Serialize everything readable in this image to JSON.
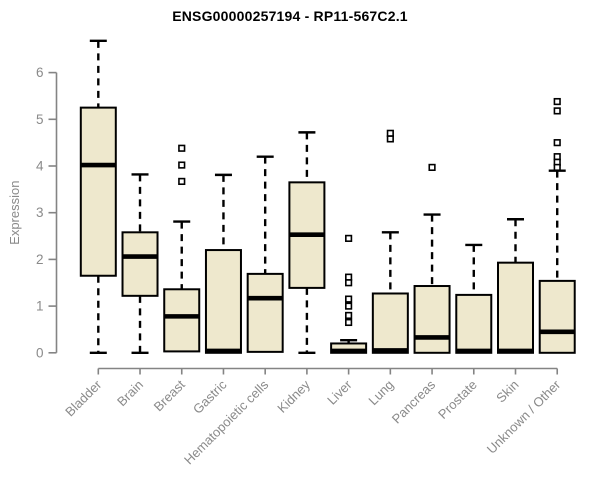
{
  "title": "ENSG00000257194 - RP11-567C2.1",
  "chart_data": {
    "type": "boxplot",
    "title": "ENSG00000257194 - RP11-567C2.1",
    "xlabel": "",
    "ylabel": "Expression",
    "ylim": [
      0,
      6.7
    ],
    "yticks": [
      0,
      1,
      2,
      3,
      4,
      5,
      6
    ],
    "grid": false,
    "legend": "none",
    "categories": [
      "Bladder",
      "Brain",
      "Breast",
      "Gastric",
      "Hematopoietic cells",
      "Kidney",
      "Liver",
      "Lung",
      "Pancreas",
      "Prostate",
      "Skin",
      "Unknown / Other"
    ],
    "series": [
      {
        "category": "Bladder",
        "whisker_low": 0,
        "q1": 1.65,
        "median": 4.02,
        "q3": 5.25,
        "whisker_high": 6.68,
        "outliers": []
      },
      {
        "category": "Brain",
        "whisker_low": 0,
        "q1": 1.22,
        "median": 2.06,
        "q3": 2.58,
        "whisker_high": 3.82,
        "outliers": []
      },
      {
        "category": "Breast",
        "whisker_low": 0.03,
        "q1": 0.03,
        "median": 0.78,
        "q3": 1.36,
        "whisker_high": 2.81,
        "outliers": [
          4.38,
          4.02,
          3.67
        ]
      },
      {
        "category": "Gastric",
        "whisker_low": 0,
        "q1": 0,
        "median": 0.04,
        "q3": 2.2,
        "whisker_high": 3.81,
        "outliers": []
      },
      {
        "category": "Hematopoietic cells",
        "whisker_low": 0.02,
        "q1": 0.02,
        "median": 1.17,
        "q3": 1.69,
        "whisker_high": 4.2,
        "outliers": []
      },
      {
        "category": "Kidney",
        "whisker_low": 0,
        "q1": 1.39,
        "median": 2.53,
        "q3": 3.65,
        "whisker_high": 4.72,
        "outliers": []
      },
      {
        "category": "Liver",
        "whisker_low": 0,
        "q1": 0,
        "median": 0.04,
        "q3": 0.2,
        "whisker_high": 0.27,
        "outliers": [
          2.45,
          1.62,
          1.5,
          1.15,
          1.0,
          0.8,
          0.65
        ]
      },
      {
        "category": "Lung",
        "whisker_low": 0,
        "q1": 0,
        "median": 0.05,
        "q3": 1.27,
        "whisker_high": 2.58,
        "outliers": [
          4.7,
          4.58
        ]
      },
      {
        "category": "Pancreas",
        "whisker_low": 0,
        "q1": 0,
        "median": 0.33,
        "q3": 1.43,
        "whisker_high": 2.96,
        "outliers": [
          3.97
        ]
      },
      {
        "category": "Prostate",
        "whisker_low": 0,
        "q1": 0,
        "median": 0.04,
        "q3": 1.24,
        "whisker_high": 2.31,
        "outliers": []
      },
      {
        "category": "Skin",
        "whisker_low": 0,
        "q1": 0,
        "median": 0.04,
        "q3": 1.93,
        "whisker_high": 2.86,
        "outliers": []
      },
      {
        "category": "Unknown / Other",
        "whisker_low": 0,
        "q1": 0,
        "median": 0.45,
        "q3": 1.54,
        "whisker_high": 3.9,
        "outliers": [
          5.38,
          5.18,
          4.5,
          4.2,
          4.08,
          3.97
        ]
      }
    ],
    "colors": {
      "background": "#FFFFFF",
      "box_fill": "#EEE8CD",
      "box_border": "#000000",
      "median": "#000000",
      "whisker": "#000000",
      "outlier_stroke": "#000000",
      "outlier_fill": "#FFFFFF",
      "axis": "#848484",
      "axis_text": "#8A8A8A",
      "title_text": "#000000"
    }
  }
}
